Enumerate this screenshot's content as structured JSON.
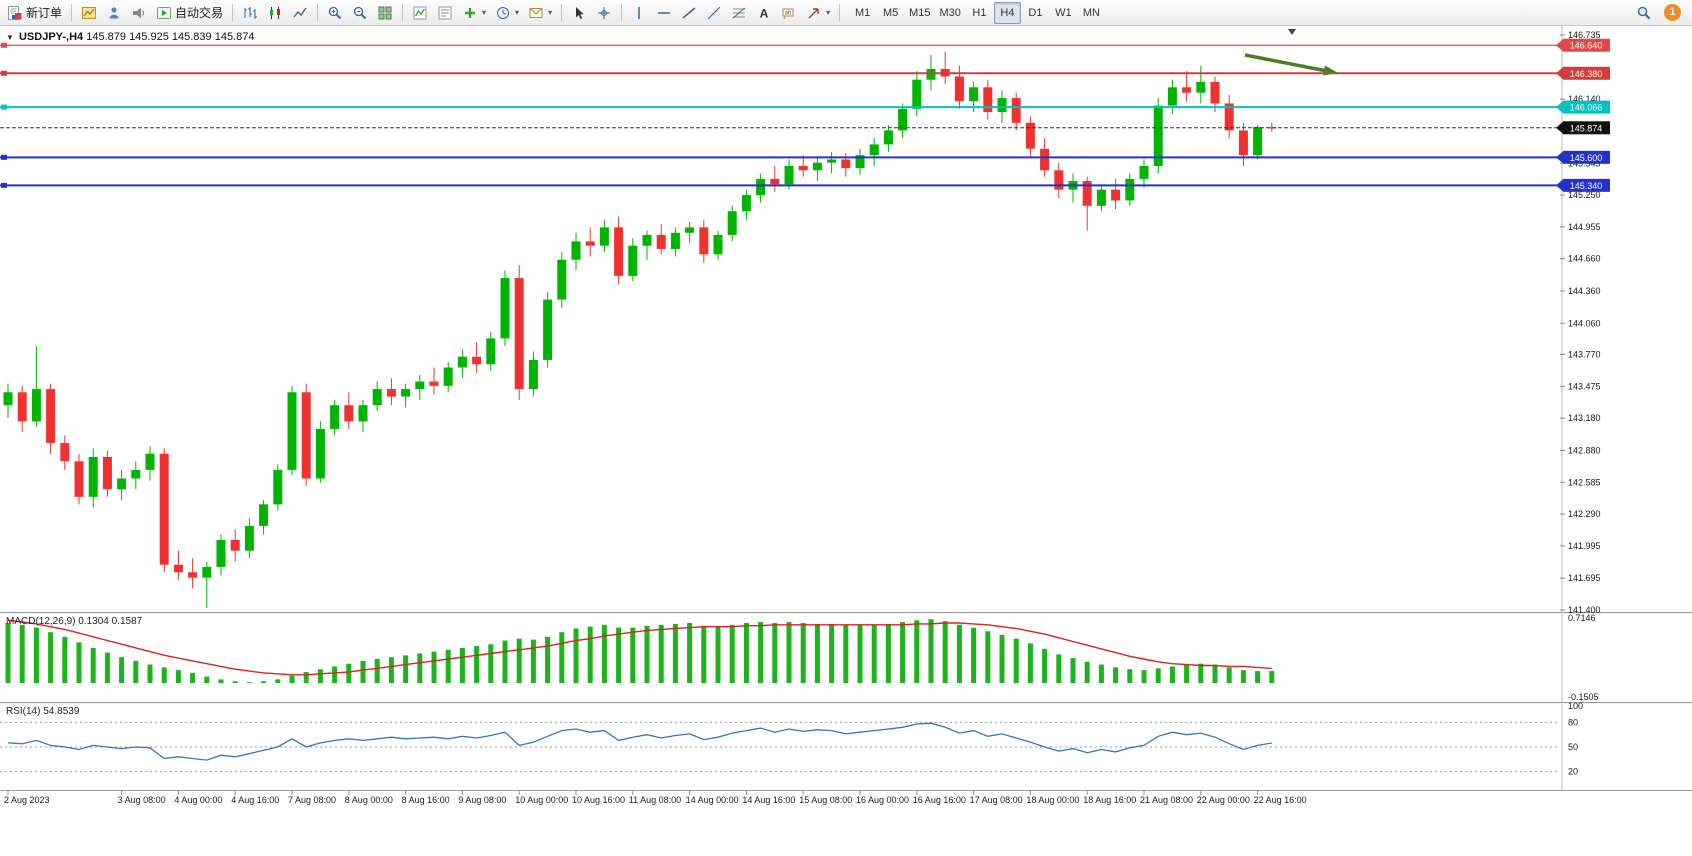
{
  "toolbar": {
    "new_order_label": "新订单",
    "auto_trading_label": "自动交易",
    "timeframes": [
      "M1",
      "M5",
      "M15",
      "M30",
      "H1",
      "H4",
      "D1",
      "W1",
      "MN"
    ],
    "active_timeframe": "H4",
    "notification_count": "1",
    "icon_buttons": [
      "new-order",
      "new-chart",
      "profiles",
      "market-watch",
      "auto-trading",
      "bar-chart",
      "candlestick-chart",
      "line-chart",
      "zoom-in",
      "zoom-out",
      "tile-windows",
      "indicator-list",
      "object-list",
      "add-indicator",
      "periods",
      "templates",
      "cursor",
      "crosshair",
      "vertical-line",
      "horizontal-line",
      "trendline",
      "channel",
      "fibonacci",
      "text",
      "text-label",
      "arrows",
      "search",
      "notifications"
    ]
  },
  "chart": {
    "header": {
      "symbol": "USDJPY-,H4",
      "ohlc": "145.879 145.925 145.839 145.874"
    },
    "current_price": "145.874",
    "levels": [
      {
        "value": "146.640",
        "color": "#e04848",
        "width": 1.2
      },
      {
        "value": "146.380",
        "color": "#d23c3c",
        "width": 2
      },
      {
        "value": "146.066",
        "color": "#00c2c2",
        "width": 2
      },
      {
        "value": "145.600",
        "color": "#2233cc",
        "width": 2
      },
      {
        "value": "145.340",
        "color": "#2233cc",
        "width": 2
      }
    ],
    "y_axis_ticks": [
      "146.735",
      "146.140",
      "145.545",
      "145.250",
      "144.955",
      "144.660",
      "144.360",
      "144.060",
      "143.770",
      "143.475",
      "143.180",
      "142.880",
      "142.585",
      "142.290",
      "141.995",
      "141.695",
      "141.400"
    ],
    "x_axis_labels": [
      "2 Aug 2023",
      "3 Aug 08:00",
      "4 Aug 00:00",
      "4 Aug 16:00",
      "7 Aug 08:00",
      "8 Aug 00:00",
      "8 Aug 16:00",
      "9 Aug 08:00",
      "10 Aug 00:00",
      "10 Aug 16:00",
      "11 Aug 08:00",
      "14 Aug 00:00",
      "14 Aug 16:00",
      "15 Aug 08:00",
      "16 Aug 00:00",
      "16 Aug 16:00",
      "17 Aug 08:00",
      "18 Aug 00:00",
      "18 Aug 16:00",
      "21 Aug 08:00",
      "22 Aug 00:00",
      "22 Aug 16:00"
    ],
    "annotation": {
      "type": "arrow",
      "color": "#4d7d1f",
      "points_to_level": "146.380"
    }
  },
  "chart_data": {
    "type": "candlestick",
    "symbol": "USDJPY-",
    "timeframe": "H4",
    "ylim": [
      141.4,
      146.735
    ],
    "colors": {
      "bull": "#00b400",
      "bear": "#ee3232"
    },
    "candles": [
      [
        143.3,
        143.5,
        143.18,
        143.42
      ],
      [
        143.42,
        143.48,
        143.05,
        143.15
      ],
      [
        143.15,
        143.85,
        143.1,
        143.45
      ],
      [
        143.45,
        143.5,
        142.85,
        142.95
      ],
      [
        142.95,
        143.02,
        142.7,
        142.78
      ],
      [
        142.78,
        142.85,
        142.38,
        142.45
      ],
      [
        142.45,
        142.9,
        142.35,
        142.82
      ],
      [
        142.82,
        142.88,
        142.45,
        142.52
      ],
      [
        142.52,
        142.7,
        142.42,
        142.62
      ],
      [
        142.62,
        142.78,
        142.52,
        142.7
      ],
      [
        142.7,
        142.92,
        142.6,
        142.85
      ],
      [
        142.85,
        142.9,
        141.75,
        141.82
      ],
      [
        141.82,
        141.95,
        141.68,
        141.75
      ],
      [
        141.75,
        141.88,
        141.6,
        141.7
      ],
      [
        141.7,
        141.85,
        141.42,
        141.8
      ],
      [
        141.8,
        142.1,
        141.72,
        142.05
      ],
      [
        142.05,
        142.15,
        141.85,
        141.95
      ],
      [
        141.95,
        142.25,
        141.88,
        142.18
      ],
      [
        142.18,
        142.42,
        142.1,
        142.38
      ],
      [
        142.38,
        142.75,
        142.32,
        142.7
      ],
      [
        142.7,
        143.48,
        142.65,
        143.42
      ],
      [
        143.42,
        143.5,
        142.55,
        142.62
      ],
      [
        142.62,
        143.15,
        142.58,
        143.08
      ],
      [
        143.08,
        143.35,
        143.02,
        143.3
      ],
      [
        143.3,
        143.42,
        143.08,
        143.15
      ],
      [
        143.15,
        143.35,
        143.05,
        143.3
      ],
      [
        143.3,
        143.52,
        143.25,
        143.45
      ],
      [
        143.45,
        143.55,
        143.3,
        143.38
      ],
      [
        143.38,
        143.5,
        143.28,
        143.45
      ],
      [
        143.45,
        143.58,
        143.35,
        143.52
      ],
      [
        143.52,
        143.65,
        143.4,
        143.48
      ],
      [
        143.48,
        143.7,
        143.42,
        143.65
      ],
      [
        143.65,
        143.82,
        143.55,
        143.75
      ],
      [
        143.75,
        143.88,
        143.6,
        143.68
      ],
      [
        143.68,
        143.98,
        143.62,
        143.92
      ],
      [
        143.92,
        144.55,
        143.85,
        144.48
      ],
      [
        144.48,
        144.6,
        143.35,
        143.45
      ],
      [
        143.45,
        143.8,
        143.38,
        143.72
      ],
      [
        143.72,
        144.35,
        143.65,
        144.28
      ],
      [
        144.28,
        144.72,
        144.2,
        144.65
      ],
      [
        144.65,
        144.9,
        144.55,
        144.82
      ],
      [
        144.82,
        144.95,
        144.68,
        144.78
      ],
      [
        144.78,
        145.02,
        144.72,
        144.95
      ],
      [
        144.95,
        145.05,
        144.42,
        144.5
      ],
      [
        144.5,
        144.85,
        144.45,
        144.78
      ],
      [
        144.78,
        144.92,
        144.65,
        144.88
      ],
      [
        144.88,
        144.98,
        144.7,
        144.75
      ],
      [
        144.75,
        144.95,
        144.68,
        144.9
      ],
      [
        144.9,
        145.0,
        144.8,
        144.95
      ],
      [
        144.95,
        145.02,
        144.62,
        144.7
      ],
      [
        144.7,
        144.92,
        144.65,
        144.88
      ],
      [
        144.88,
        145.15,
        144.82,
        145.1
      ],
      [
        145.1,
        145.3,
        145.02,
        145.25
      ],
      [
        145.25,
        145.45,
        145.18,
        145.4
      ],
      [
        145.4,
        145.52,
        145.28,
        145.35
      ],
      [
        145.35,
        145.58,
        145.3,
        145.52
      ],
      [
        145.52,
        145.62,
        145.42,
        145.48
      ],
      [
        145.48,
        145.6,
        145.38,
        145.55
      ],
      [
        145.55,
        145.65,
        145.45,
        145.58
      ],
      [
        145.58,
        145.64,
        145.42,
        145.5
      ],
      [
        145.5,
        145.68,
        145.44,
        145.62
      ],
      [
        145.62,
        145.78,
        145.52,
        145.72
      ],
      [
        145.72,
        145.9,
        145.65,
        145.85
      ],
      [
        145.85,
        146.1,
        145.78,
        146.05
      ],
      [
        146.05,
        146.4,
        145.98,
        146.32
      ],
      [
        146.32,
        146.55,
        146.22,
        146.42
      ],
      [
        146.42,
        146.58,
        146.28,
        146.35
      ],
      [
        146.35,
        146.45,
        146.05,
        146.12
      ],
      [
        146.12,
        146.3,
        146.02,
        146.25
      ],
      [
        146.25,
        146.32,
        145.95,
        146.02
      ],
      [
        146.02,
        146.22,
        145.92,
        146.15
      ],
      [
        146.15,
        146.2,
        145.85,
        145.92
      ],
      [
        145.92,
        145.98,
        145.6,
        145.68
      ],
      [
        145.68,
        145.78,
        145.42,
        145.48
      ],
      [
        145.48,
        145.55,
        145.22,
        145.3
      ],
      [
        145.3,
        145.45,
        145.18,
        145.38
      ],
      [
        145.38,
        145.42,
        144.92,
        145.15
      ],
      [
        145.15,
        145.35,
        145.1,
        145.3
      ],
      [
        145.3,
        145.4,
        145.12,
        145.2
      ],
      [
        145.2,
        145.45,
        145.15,
        145.4
      ],
      [
        145.4,
        145.58,
        145.32,
        145.52
      ],
      [
        145.52,
        146.15,
        145.45,
        146.08
      ],
      [
        146.08,
        146.32,
        146.0,
        146.25
      ],
      [
        146.25,
        146.4,
        146.12,
        146.2
      ],
      [
        146.2,
        146.45,
        146.1,
        146.3
      ],
      [
        146.3,
        146.35,
        146.02,
        146.1
      ],
      [
        146.1,
        146.18,
        145.78,
        145.85
      ],
      [
        145.85,
        145.92,
        145.52,
        145.62
      ],
      [
        145.62,
        145.9,
        145.58,
        145.88
      ],
      [
        145.879,
        145.925,
        145.839,
        145.874
      ]
    ],
    "indicators": {
      "macd": {
        "label": "MACD(12,26,9) 0.1304 0.1587",
        "scale_max": "0.7146",
        "scale_min": "-0.1505",
        "hist_color": "#1db31d",
        "signal_color": "#dd2222",
        "hist": [
          0.65,
          0.63,
          0.6,
          0.55,
          0.5,
          0.44,
          0.38,
          0.33,
          0.28,
          0.24,
          0.2,
          0.17,
          0.14,
          0.11,
          0.07,
          0.04,
          0.02,
          0.01,
          0.02,
          0.04,
          0.08,
          0.12,
          0.15,
          0.18,
          0.21,
          0.24,
          0.26,
          0.28,
          0.3,
          0.32,
          0.34,
          0.36,
          0.38,
          0.4,
          0.42,
          0.46,
          0.48,
          0.47,
          0.5,
          0.55,
          0.59,
          0.61,
          0.63,
          0.6,
          0.6,
          0.62,
          0.63,
          0.64,
          0.65,
          0.62,
          0.61,
          0.63,
          0.65,
          0.66,
          0.65,
          0.66,
          0.65,
          0.64,
          0.64,
          0.63,
          0.63,
          0.63,
          0.64,
          0.66,
          0.68,
          0.69,
          0.67,
          0.63,
          0.6,
          0.56,
          0.52,
          0.48,
          0.43,
          0.37,
          0.31,
          0.27,
          0.23,
          0.2,
          0.17,
          0.15,
          0.14,
          0.16,
          0.18,
          0.2,
          0.21,
          0.2,
          0.17,
          0.14,
          0.13,
          0.1304
        ],
        "signal": [
          0.68,
          0.66,
          0.64,
          0.61,
          0.58,
          0.54,
          0.5,
          0.46,
          0.42,
          0.38,
          0.34,
          0.3,
          0.27,
          0.24,
          0.21,
          0.18,
          0.15,
          0.13,
          0.11,
          0.1,
          0.09,
          0.09,
          0.1,
          0.11,
          0.12,
          0.14,
          0.16,
          0.18,
          0.2,
          0.22,
          0.24,
          0.26,
          0.28,
          0.3,
          0.32,
          0.34,
          0.36,
          0.38,
          0.4,
          0.43,
          0.46,
          0.48,
          0.51,
          0.53,
          0.55,
          0.57,
          0.58,
          0.59,
          0.6,
          0.61,
          0.61,
          0.61,
          0.62,
          0.62,
          0.63,
          0.63,
          0.63,
          0.63,
          0.63,
          0.63,
          0.63,
          0.63,
          0.63,
          0.63,
          0.64,
          0.64,
          0.65,
          0.65,
          0.64,
          0.63,
          0.61,
          0.59,
          0.56,
          0.53,
          0.49,
          0.45,
          0.41,
          0.37,
          0.33,
          0.29,
          0.26,
          0.23,
          0.21,
          0.2,
          0.19,
          0.19,
          0.18,
          0.18,
          0.17,
          0.1587
        ]
      },
      "rsi": {
        "label": "RSI(14) 54.8539",
        "line_color": "#3377bb",
        "axis_values": [
          100,
          80,
          50,
          20
        ],
        "values": [
          55,
          54,
          58,
          52,
          50,
          47,
          52,
          50,
          48,
          50,
          49,
          36,
          38,
          36,
          34,
          40,
          38,
          42,
          46,
          50,
          60,
          50,
          55,
          58,
          60,
          58,
          60,
          62,
          60,
          61,
          62,
          60,
          63,
          61,
          64,
          68,
          52,
          56,
          63,
          70,
          72,
          68,
          70,
          58,
          62,
          65,
          61,
          64,
          66,
          59,
          62,
          67,
          70,
          73,
          68,
          72,
          69,
          71,
          70,
          66,
          68,
          70,
          72,
          74,
          78,
          79,
          74,
          67,
          70,
          63,
          66,
          61,
          56,
          50,
          45,
          48,
          43,
          47,
          44,
          49,
          52,
          63,
          68,
          65,
          67,
          62,
          54,
          47,
          52,
          54.85
        ]
      }
    }
  }
}
